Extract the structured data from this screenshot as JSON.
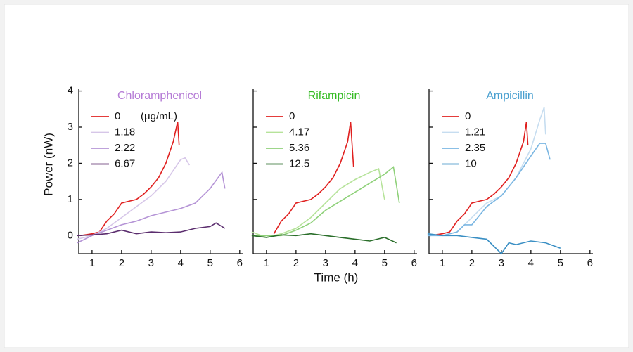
{
  "chart_data": [
    {
      "type": "line",
      "title": "Chloramphenicol",
      "title_color": "#b57bd6",
      "ylabel": "Power (nW)",
      "legend_unit": "(μg/mL)",
      "xlim": [
        0.55,
        6.1
      ],
      "xticks": [
        1,
        2,
        3,
        4,
        5,
        6
      ],
      "ylim": [
        -0.5,
        4.05
      ],
      "yticks": [
        0,
        1,
        2,
        3,
        4
      ],
      "ytick_labels": true,
      "series": [
        {
          "name": "0",
          "color": "#e0201f",
          "x": [
            0.6,
            1.0,
            1.25,
            1.5,
            1.75,
            2.0,
            2.25,
            2.5,
            2.75,
            3.0,
            3.25,
            3.5,
            3.75,
            3.9,
            3.95
          ],
          "values": [
            0,
            0.05,
            0.1,
            0.4,
            0.6,
            0.9,
            0.95,
            1.0,
            1.15,
            1.35,
            1.6,
            2.0,
            2.6,
            3.15,
            2.5
          ]
        },
        {
          "name": "1.18",
          "color": "#d6c6e8",
          "x": [
            0.5,
            1.0,
            1.5,
            2.0,
            2.5,
            3.0,
            3.5,
            3.75,
            4.0,
            4.15,
            4.3
          ],
          "values": [
            -0.1,
            0,
            0.2,
            0.5,
            0.8,
            1.1,
            1.5,
            1.8,
            2.1,
            2.15,
            1.95
          ]
        },
        {
          "name": "2.22",
          "color": "#b594d6",
          "x": [
            0.5,
            1.0,
            1.5,
            2.0,
            2.5,
            3.0,
            3.5,
            4.0,
            4.5,
            5.0,
            5.4,
            5.5
          ],
          "values": [
            -0.2,
            0,
            0.15,
            0.3,
            0.4,
            0.55,
            0.65,
            0.75,
            0.9,
            1.3,
            1.75,
            1.3
          ]
        },
        {
          "name": "6.67",
          "color": "#5b2d6e",
          "x": [
            0.5,
            1.0,
            1.5,
            2.0,
            2.5,
            3.0,
            3.5,
            4.0,
            4.5,
            5.0,
            5.2,
            5.5
          ],
          "values": [
            0,
            0.02,
            0.05,
            0.15,
            0.05,
            0.1,
            0.08,
            0.1,
            0.2,
            0.25,
            0.35,
            0.2
          ]
        }
      ]
    },
    {
      "type": "line",
      "title": "Rifampicin",
      "title_color": "#33bb22",
      "xlabel": "Time (h)",
      "xlim": [
        0.55,
        6.1
      ],
      "xticks": [
        1,
        2,
        3,
        4,
        5,
        6
      ],
      "ylim": [
        -0.5,
        4.05
      ],
      "yticks": [
        0,
        1,
        2,
        3,
        4
      ],
      "ytick_labels": false,
      "series": [
        {
          "name": "0",
          "color": "#e0201f",
          "x": [
            1.25,
            1.5,
            1.75,
            2.0,
            2.25,
            2.5,
            2.75,
            3.0,
            3.25,
            3.5,
            3.75,
            3.85,
            3.95
          ],
          "values": [
            0.05,
            0.4,
            0.6,
            0.9,
            0.95,
            1.0,
            1.15,
            1.35,
            1.6,
            2.0,
            2.6,
            3.15,
            1.9
          ]
        },
        {
          "name": "4.17",
          "color": "#b6e39a",
          "x": [
            0.5,
            1.0,
            1.5,
            2.0,
            2.5,
            3.0,
            3.5,
            4.0,
            4.5,
            4.8,
            5.0
          ],
          "values": [
            0.1,
            -0.05,
            0.05,
            0.2,
            0.5,
            0.9,
            1.3,
            1.55,
            1.75,
            1.85,
            1.0
          ]
        },
        {
          "name": "5.36",
          "color": "#8fd17a",
          "x": [
            0.5,
            1.0,
            1.5,
            2.0,
            2.5,
            3.0,
            3.5,
            4.0,
            4.5,
            5.0,
            5.3,
            5.5
          ],
          "values": [
            0,
            0,
            0,
            0.15,
            0.35,
            0.7,
            0.95,
            1.2,
            1.45,
            1.7,
            1.9,
            0.9
          ]
        },
        {
          "name": "12.5",
          "color": "#2a6e2a",
          "x": [
            0.5,
            1.0,
            1.5,
            2.0,
            2.5,
            3.0,
            3.5,
            4.0,
            4.5,
            5.0,
            5.4
          ],
          "values": [
            0,
            -0.05,
            0.02,
            0,
            0.05,
            0,
            -0.05,
            -0.1,
            -0.15,
            -0.05,
            -0.2
          ]
        }
      ]
    },
    {
      "type": "line",
      "title": "Ampicillin",
      "title_color": "#4aa0d0",
      "xlim": [
        0.55,
        6.1
      ],
      "xticks": [
        1,
        2,
        3,
        4,
        5,
        6
      ],
      "ylim": [
        -0.5,
        4.05
      ],
      "yticks": [
        0,
        1,
        2,
        3,
        4
      ],
      "ytick_labels": false,
      "series": [
        {
          "name": "0",
          "color": "#e0201f",
          "x": [
            0.6,
            1.0,
            1.25,
            1.5,
            1.75,
            2.0,
            2.25,
            2.5,
            2.75,
            3.0,
            3.25,
            3.5,
            3.75,
            3.85,
            3.9
          ],
          "values": [
            0,
            0.05,
            0.1,
            0.4,
            0.6,
            0.9,
            0.95,
            1.0,
            1.15,
            1.35,
            1.6,
            2.0,
            2.6,
            3.15,
            2.5
          ]
        },
        {
          "name": "1.21",
          "color": "#c6ddf0",
          "x": [
            0.5,
            1.0,
            1.5,
            2.0,
            2.5,
            3.0,
            3.5,
            4.0,
            4.3,
            4.45,
            4.5
          ],
          "values": [
            0.05,
            0,
            0.1,
            0.5,
            0.9,
            1.1,
            1.6,
            2.4,
            3.2,
            3.55,
            2.8
          ]
        },
        {
          "name": "2.35",
          "color": "#7ab6e2",
          "x": [
            0.5,
            1.0,
            1.5,
            1.75,
            2.0,
            2.5,
            3.0,
            3.5,
            4.0,
            4.3,
            4.5,
            4.65
          ],
          "values": [
            0,
            0,
            0.1,
            0.3,
            0.3,
            0.8,
            1.1,
            1.6,
            2.2,
            2.55,
            2.55,
            2.1
          ]
        },
        {
          "name": "10",
          "color": "#3a8fc4",
          "x": [
            0.5,
            1.0,
            1.5,
            2.0,
            2.5,
            3.0,
            3.25,
            3.5,
            4.0,
            4.5,
            5.0
          ],
          "values": [
            0.05,
            0,
            0,
            -0.05,
            -0.1,
            -0.5,
            -0.2,
            -0.25,
            -0.15,
            -0.2,
            -0.35
          ]
        }
      ]
    }
  ]
}
